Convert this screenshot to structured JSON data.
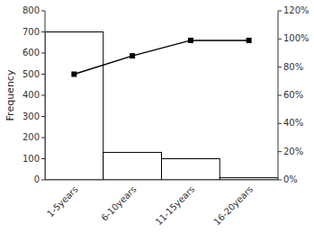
{
  "chart_data": {
    "type": "bar",
    "categories": [
      "1-5years",
      "6-10years",
      "11-15years",
      "16-20years"
    ],
    "series": [
      {
        "type": "bar",
        "color": "#ffffff",
        "values": [
          700,
          130,
          100,
          10
        ]
      },
      {
        "type": "line",
        "axis": "y2",
        "color": "#000000",
        "marker": "square",
        "values": [
          75,
          88,
          99,
          99
        ]
      }
    ],
    "ylabel": "Frequency",
    "ylim": [
      0,
      800
    ],
    "yticks": [
      0,
      100,
      200,
      300,
      400,
      500,
      600,
      700,
      800
    ],
    "y2lim": [
      0,
      120
    ],
    "y2ticks": [
      {
        "value": 0,
        "label": "0%"
      },
      {
        "value": 20,
        "label": "20%"
      },
      {
        "value": 40,
        "label": "40%"
      },
      {
        "value": 60,
        "label": "60%"
      },
      {
        "value": 80,
        "label": "80%"
      },
      {
        "value": 100,
        "label": "100%"
      },
      {
        "value": 120,
        "label": "120%"
      }
    ],
    "grid": false
  }
}
